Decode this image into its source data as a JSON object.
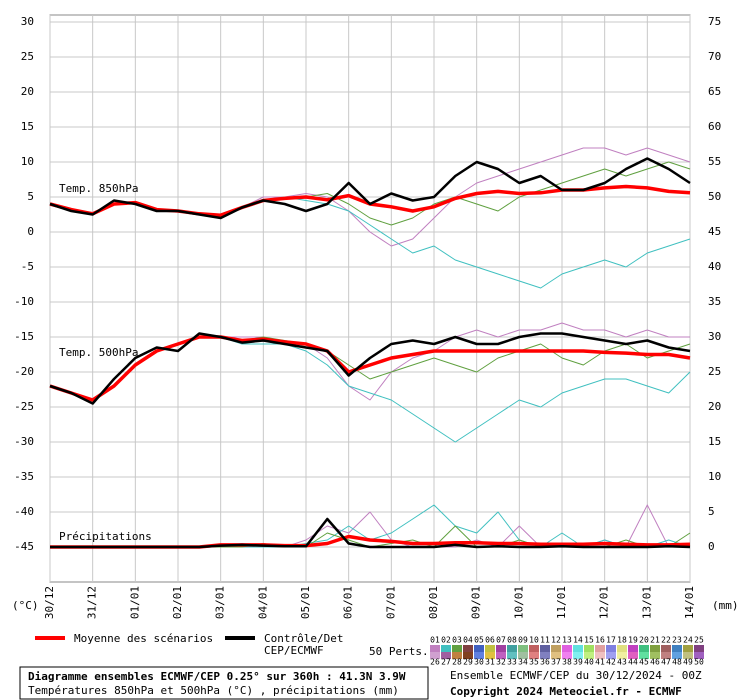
{
  "chart_data": {
    "type": "line",
    "title": "Diagramme ensembles ECMWF/CEP 0.25° sur 360h : 41.3N 3.9W",
    "subtitle": "Températures 850hPa et 500hPa (°C) , précipitations (mm)",
    "run_info": "Ensemble ECMWF/CEP du 30/12/2024 - 00Z",
    "copyright": "Copyright 2024 Meteociel.fr - ECMWF",
    "y_label": "(°C)",
    "y2_label": "(mm)",
    "annotations": [
      "Temp. 850hPa",
      "Temp. 500hPa",
      "Précipitations"
    ],
    "x": [
      0,
      0.5,
      1,
      1.5,
      2,
      2.5,
      3,
      3.5,
      4,
      4.5,
      5,
      5.5,
      6,
      6.5,
      7,
      7.5,
      8,
      8.5,
      9,
      9.5,
      10,
      10.5,
      11,
      11.5,
      12,
      12.5,
      13,
      13.5,
      14,
      14.5,
      15
    ],
    "xlim": [
      0,
      15
    ],
    "xticks": [
      {
        "value": 0,
        "label": "30/12"
      },
      {
        "value": 1,
        "label": "31/12"
      },
      {
        "value": 2,
        "label": "01/01"
      },
      {
        "value": 3,
        "label": "02/01"
      },
      {
        "value": 4,
        "label": "03/01"
      },
      {
        "value": 5,
        "label": "04/01"
      },
      {
        "value": 6,
        "label": "05/01"
      },
      {
        "value": 7,
        "label": "06/01"
      },
      {
        "value": 8,
        "label": "07/01"
      },
      {
        "value": 9,
        "label": "08/01"
      },
      {
        "value": 10,
        "label": "09/01"
      },
      {
        "value": 11,
        "label": "10/01"
      },
      {
        "value": 12,
        "label": "11/01"
      },
      {
        "value": 13,
        "label": "12/01"
      },
      {
        "value": 14,
        "label": "13/01"
      },
      {
        "value": 15,
        "label": "14/01"
      }
    ],
    "ylim": [
      -50,
      30
    ],
    "yticks": [
      30,
      25,
      20,
      15,
      10,
      5,
      0,
      -5,
      -10,
      -15,
      -20,
      -25,
      -30,
      -35,
      -40,
      -45
    ],
    "y2lim": [
      -5,
      75
    ],
    "y2ticks": [
      75,
      70,
      65,
      60,
      55,
      50,
      45,
      40,
      35,
      30,
      25,
      20,
      15,
      10,
      5,
      0
    ],
    "grid": true,
    "series": [
      {
        "name": "Moyenne des scénarios",
        "color": "#ff0000",
        "values": [
          4,
          3.2,
          2.6,
          4,
          4.2,
          3.2,
          3,
          2.6,
          2.4,
          3.5,
          4.5,
          4.8,
          5,
          4.6,
          5.2,
          4,
          3.6,
          3,
          3.6,
          4.8,
          5.5,
          5.8,
          5.5,
          5.6,
          6,
          6,
          6.3,
          6.5,
          6.3,
          5.8,
          5.6
        ],
        "values_500": [
          -22,
          -23,
          -24,
          -22,
          -19,
          -17,
          -16,
          -15,
          -15,
          -15.5,
          -15.3,
          -15.7,
          -16,
          -17,
          -20,
          -19,
          -18,
          -17.5,
          -17,
          -17,
          -17,
          -17,
          -17,
          -17,
          -17,
          -17,
          -17.2,
          -17.3,
          -17.5,
          -17.5,
          -18
        ],
        "values_precip": [
          0,
          0,
          0,
          0,
          0,
          0,
          0,
          0,
          0.3,
          0.3,
          0.3,
          0.2,
          0.2,
          0.5,
          1.5,
          1,
          0.8,
          0.5,
          0.5,
          0.6,
          0.6,
          0.5,
          0.5,
          0.4,
          0.4,
          0.4,
          0.5,
          0.4,
          0.3,
          0.3,
          0.4
        ]
      },
      {
        "name": "Contrôle/Det",
        "name2": "CEP/ECMWF",
        "color": "#000000",
        "values": [
          4,
          3,
          2.5,
          4.5,
          4,
          3,
          3,
          2.5,
          2,
          3.5,
          4.5,
          4,
          3,
          4,
          7,
          4,
          5.5,
          4.5,
          5,
          8,
          10,
          9,
          7,
          8,
          6,
          6,
          7,
          9,
          10.5,
          9,
          7
        ],
        "values_500": [
          -22,
          -23,
          -24.5,
          -21,
          -18,
          -16.5,
          -17,
          -14.5,
          -15,
          -15.8,
          -15.5,
          -16,
          -16.5,
          -17,
          -20.5,
          -18,
          -16,
          -15.5,
          -16,
          -15,
          -16,
          -16,
          -15,
          -14.5,
          -14.5,
          -15,
          -15.5,
          -16,
          -15.5,
          -16.5,
          -17
        ],
        "values_precip": [
          0,
          0,
          0,
          0,
          0,
          0,
          0,
          0,
          0.2,
          0.3,
          0.2,
          0.1,
          0.1,
          4,
          0.5,
          0,
          0,
          0,
          0,
          0.3,
          0,
          0.1,
          0,
          0,
          0.1,
          0,
          0,
          0,
          0,
          0.1,
          0
        ]
      }
    ],
    "perturbations_label": "50 Perts.",
    "perturbations": [
      {
        "name": "01",
        "color": "#c080c0",
        "values": [
          4,
          3,
          2.8,
          4,
          4,
          3,
          3,
          2.5,
          2.5,
          3.5,
          5,
          5,
          5.5,
          5,
          3,
          0,
          -2,
          -1,
          2,
          5,
          7,
          8,
          9,
          10,
          11,
          12,
          12,
          11,
          12,
          11,
          10
        ],
        "values_500": [
          -22,
          -23,
          -24,
          -22,
          -19,
          -17,
          -16,
          -15,
          -15,
          -15,
          -15,
          -16,
          -16,
          -18,
          -22,
          -24,
          -20,
          -18,
          -17,
          -15,
          -14,
          -15,
          -14,
          -14,
          -13,
          -14,
          -14,
          -15,
          -14,
          -15,
          -15
        ],
        "values_precip": [
          0,
          0,
          0,
          0,
          0,
          0,
          0,
          0,
          0,
          0.5,
          0,
          0,
          1,
          3,
          2,
          5,
          1,
          0,
          0,
          0,
          1,
          0,
          3,
          0,
          0,
          0,
          1,
          0,
          6,
          0,
          0
        ]
      },
      {
        "name": "02",
        "color": "#40c0c0",
        "values": [
          4,
          3,
          2.5,
          4,
          4.2,
          3,
          3,
          2.6,
          2.2,
          3.4,
          4.6,
          5,
          4.5,
          4,
          3,
          1,
          -1,
          -3,
          -2,
          -4,
          -5,
          -6,
          -7,
          -8,
          -6,
          -5,
          -4,
          -5,
          -3,
          -2,
          -1
        ],
        "values_500": [
          -22,
          -23,
          -24,
          -22,
          -19,
          -17,
          -16,
          -15,
          -15,
          -16,
          -16,
          -16,
          -17,
          -19,
          -22,
          -23,
          -24,
          -26,
          -28,
          -30,
          -28,
          -26,
          -24,
          -25,
          -23,
          -22,
          -21,
          -21,
          -22,
          -23,
          -20
        ],
        "values_precip": [
          0,
          0,
          0,
          0,
          0,
          0,
          0,
          0,
          0,
          0,
          0,
          0,
          0.5,
          1,
          3,
          1,
          2,
          4,
          6,
          3,
          2,
          5,
          1,
          0,
          2,
          0,
          1,
          0,
          0,
          1,
          0
        ]
      },
      {
        "name": "03",
        "color": "#60a040",
        "values": [
          4,
          3.3,
          2.7,
          4,
          4.1,
          3.2,
          3,
          2.7,
          2.5,
          3.6,
          4.5,
          4.7,
          5,
          5.5,
          4,
          2,
          1,
          2,
          4,
          5,
          4,
          3,
          5,
          6,
          7,
          8,
          9,
          8,
          9,
          10,
          9
        ],
        "values_500": [
          -22,
          -23,
          -24,
          -22,
          -19,
          -17,
          -16,
          -15,
          -15,
          -15.5,
          -15,
          -15.5,
          -16,
          -17,
          -19,
          -21,
          -20,
          -19,
          -18,
          -19,
          -20,
          -18,
          -17,
          -16,
          -18,
          -19,
          -17,
          -16,
          -18,
          -17,
          -16
        ],
        "values_precip": [
          0,
          0,
          0,
          0,
          0,
          0,
          0,
          0,
          0,
          0,
          0.5,
          0,
          0,
          2,
          1,
          0,
          0.5,
          1,
          0,
          3,
          0,
          0,
          1,
          0,
          0.5,
          0,
          0,
          1,
          0,
          0,
          2
        ]
      }
    ],
    "members": [
      {
        "name": "01",
        "color": "#c080c0"
      },
      {
        "name": "02",
        "color": "#40c0c0"
      },
      {
        "name": "03",
        "color": "#60a040"
      },
      {
        "name": "04",
        "color": "#804040"
      },
      {
        "name": "05",
        "color": "#4060c0"
      },
      {
        "name": "06",
        "color": "#c0c040"
      },
      {
        "name": "07",
        "color": "#a040a0"
      },
      {
        "name": "08",
        "color": "#40a0a0"
      },
      {
        "name": "09",
        "color": "#80c080"
      },
      {
        "name": "10",
        "color": "#c06060"
      },
      {
        "name": "11",
        "color": "#6060a0"
      },
      {
        "name": "12",
        "color": "#c0a060"
      },
      {
        "name": "13",
        "color": "#e060e0"
      },
      {
        "name": "14",
        "color": "#60e0e0"
      },
      {
        "name": "15",
        "color": "#a0e060"
      },
      {
        "name": "16",
        "color": "#e0a0a0"
      },
      {
        "name": "17",
        "color": "#8080e0"
      },
      {
        "name": "18",
        "color": "#e0e080"
      },
      {
        "name": "19",
        "color": "#c040c0"
      },
      {
        "name": "20",
        "color": "#40c080"
      },
      {
        "name": "21",
        "color": "#80a040"
      },
      {
        "name": "22",
        "color": "#a06060"
      },
      {
        "name": "23",
        "color": "#4080c0"
      },
      {
        "name": "24",
        "color": "#a0a040"
      },
      {
        "name": "25",
        "color": "#804080"
      },
      {
        "name": "26",
        "color": "#d0a0d0"
      },
      {
        "name": "27",
        "color": "#a060a0"
      },
      {
        "name": "28",
        "color": "#c08040"
      },
      {
        "name": "29",
        "color": "#804020"
      },
      {
        "name": "30",
        "color": "#6080e0"
      },
      {
        "name": "31",
        "color": "#e0c040"
      },
      {
        "name": "32",
        "color": "#c060c0"
      },
      {
        "name": "33",
        "color": "#60c0c0"
      },
      {
        "name": "34",
        "color": "#a0c0a0"
      },
      {
        "name": "35",
        "color": "#e08080"
      },
      {
        "name": "36",
        "color": "#8080c0"
      },
      {
        "name": "37",
        "color": "#e0c080"
      },
      {
        "name": "38",
        "color": "#f080f0"
      },
      {
        "name": "39",
        "color": "#80f0f0"
      },
      {
        "name": "40",
        "color": "#c0f080"
      },
      {
        "name": "41",
        "color": "#f0c0c0"
      },
      {
        "name": "42",
        "color": "#a0a0f0"
      },
      {
        "name": "43",
        "color": "#f0f0a0"
      },
      {
        "name": "44",
        "color": "#e060c0"
      },
      {
        "name": "45",
        "color": "#60e0a0"
      },
      {
        "name": "46",
        "color": "#a0c060"
      },
      {
        "name": "47",
        "color": "#c08080"
      },
      {
        "name": "48",
        "color": "#60a0e0"
      },
      {
        "name": "49",
        "color": "#c0c080"
      },
      {
        "name": "50",
        "color": "#a060c0"
      }
    ]
  }
}
